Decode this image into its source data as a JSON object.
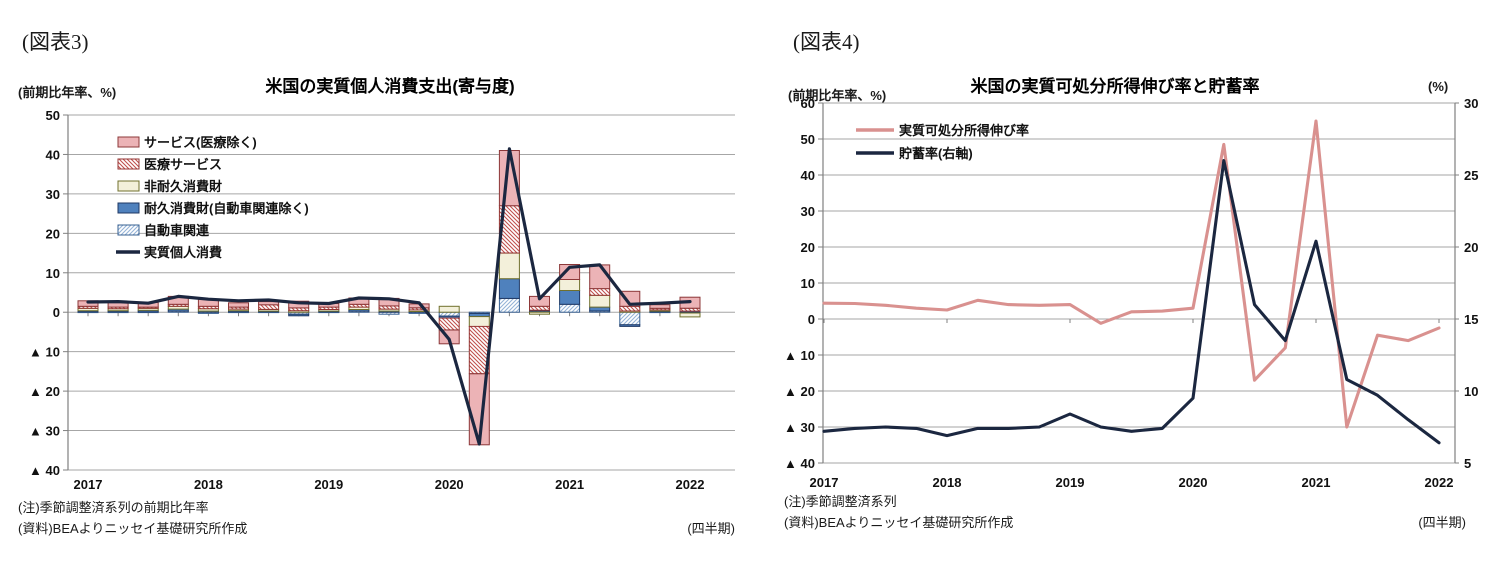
{
  "page": {
    "background": "#ffffff"
  },
  "figure3": {
    "tag": "(図表3)",
    "axis_unit": "(前期比年率、%)",
    "title": "米国の実質個人消費支出(寄与度)",
    "note1": "(注)季節調整済系列の前期比年率",
    "note2": "(資料)BEAよりニッセイ基礎研究所作成",
    "period_label": "(四半期)"
  },
  "figure4": {
    "tag": "(図表4)",
    "axis_unit": "(前期比年率、%)",
    "right_axis_unit": "(%)",
    "title": "米国の実質可処分所得伸び率と貯蓄率",
    "note1": "(注)季節調整済系列",
    "note2": "(資料)BEAよりニッセイ基礎研究所作成",
    "period_label": "(四半期)"
  },
  "chart_data": [
    {
      "figure": "図表3",
      "type": "bar",
      "subtype": "stacked-bar-with-line",
      "title": "米国の実質個人消費支出(寄与度)",
      "xlabel": "(四半期)",
      "ylabel": "(前期比年率、%)",
      "ylim": [
        -40,
        50
      ],
      "ytick_interval": 10,
      "negative_label_format": "▲ {n}",
      "grid": true,
      "legend_position": "upper-left",
      "x_quarters": [
        "2017Q1",
        "2017Q2",
        "2017Q3",
        "2017Q4",
        "2018Q1",
        "2018Q2",
        "2018Q3",
        "2018Q4",
        "2019Q1",
        "2019Q2",
        "2019Q3",
        "2019Q4",
        "2020Q1",
        "2020Q2",
        "2020Q3",
        "2020Q4",
        "2021Q1",
        "2021Q2",
        "2021Q3",
        "2021Q4",
        "2022Q1"
      ],
      "year_labels": [
        "2017",
        "2018",
        "2019",
        "2020",
        "2021",
        "2022"
      ],
      "bar_series": [
        {
          "name": "自動車関連",
          "style": "hatch-blue",
          "values": [
            0.1,
            0.1,
            0.1,
            0.3,
            -0.3,
            0.1,
            0.1,
            -0.5,
            0.1,
            0.3,
            -0.5,
            -0.3,
            -1.0,
            -0.3,
            3.5,
            0.3,
            2.0,
            0.3,
            -3.2,
            0.1,
            -0.2
          ]
        },
        {
          "name": "耐久消費財(自動車関連除く)",
          "style": "solid-blue",
          "values": [
            0.3,
            0.3,
            0.4,
            0.5,
            0.3,
            0.3,
            0.2,
            -0.4,
            0.2,
            0.4,
            0.3,
            0.2,
            -0.5,
            -0.8,
            5.0,
            0.2,
            3.5,
            1.0,
            -0.4,
            0.2,
            0.3
          ]
        },
        {
          "name": "非耐久消費財",
          "style": "solid-cream",
          "values": [
            0.6,
            0.5,
            0.5,
            0.7,
            0.6,
            0.4,
            0.4,
            0.4,
            0.4,
            0.6,
            0.5,
            0.4,
            1.5,
            -2.5,
            6.5,
            -0.5,
            2.8,
            3.0,
            0.3,
            0.3,
            -1.0
          ]
        },
        {
          "name": "医療サービス",
          "style": "hatch-pink",
          "values": [
            0.5,
            0.4,
            0.3,
            0.5,
            0.6,
            0.5,
            1.2,
            0.7,
            0.6,
            0.7,
            0.8,
            0.5,
            -3.0,
            -12.0,
            12.0,
            1.0,
            0.0,
            1.7,
            1.2,
            0.4,
            0.7
          ]
        },
        {
          "name": "サービス(医療除く)",
          "style": "solid-pink",
          "values": [
            1.4,
            1.4,
            1.2,
            2.0,
            1.8,
            1.1,
            0.8,
            1.7,
            0.9,
            1.6,
            1.9,
            1.0,
            -3.5,
            -18.0,
            14.0,
            2.5,
            3.8,
            6.0,
            3.8,
            0.9,
            2.8
          ]
        }
      ],
      "line_series": {
        "name": "実質個人消費",
        "style": "navy-line",
        "values": [
          2.6,
          2.7,
          2.3,
          4.0,
          3.3,
          2.9,
          3.1,
          2.4,
          2.2,
          3.6,
          3.4,
          2.4,
          -6.9,
          -33.4,
          41.4,
          3.4,
          11.4,
          12.0,
          2.0,
          2.3,
          2.7
        ]
      },
      "legend_order": [
        "サービス(医療除く)",
        "医療サービス",
        "非耐久消費財",
        "耐久消費財(自動車関連除く)",
        "自動車関連",
        "実質個人消費"
      ],
      "colors": {
        "solid-pink": "#ecb3b6",
        "solid-pink-border": "#8c3839",
        "hatch-pink-line": "#c0504d",
        "hatch-pink-border": "#943634",
        "solid-cream": "#f3f0da",
        "solid-cream-border": "#70702d",
        "solid-blue": "#4f81bd",
        "solid-blue-border": "#1f3864",
        "hatch-blue-line": "#95b3d7",
        "hatch-blue-border": "#376092",
        "navy-line": "#1b2740"
      }
    },
    {
      "figure": "図表4",
      "type": "line",
      "title": "米国の実質可処分所得伸び率と貯蓄率",
      "xlabel": "(四半期)",
      "ylabel_left": "(前期比年率、%)",
      "ylabel_right": "(%)",
      "ylim_left": [
        -40,
        60
      ],
      "ylim_right": [
        5,
        30
      ],
      "left_tick_interval": 10,
      "right_tick_values": [
        30,
        25,
        20,
        15,
        10,
        5
      ],
      "negative_label_format": "▲ {n}",
      "grid": true,
      "legend_position": "upper-left",
      "x_quarters": [
        "2017Q1",
        "2017Q2",
        "2017Q3",
        "2017Q4",
        "2018Q1",
        "2018Q2",
        "2018Q3",
        "2018Q4",
        "2019Q1",
        "2019Q2",
        "2019Q3",
        "2019Q4",
        "2020Q1",
        "2020Q2",
        "2020Q3",
        "2020Q4",
        "2021Q1",
        "2021Q2",
        "2021Q3",
        "2021Q4",
        "2022Q1"
      ],
      "year_labels": [
        "2017",
        "2018",
        "2019",
        "2020",
        "2021",
        "2022"
      ],
      "series": [
        {
          "name": "実質可処分所得伸び率",
          "axis": "left",
          "color": "#d9918f",
          "values": [
            4.4,
            4.3,
            3.8,
            3.0,
            2.5,
            5.2,
            4.0,
            3.8,
            4.0,
            -1.2,
            2.0,
            2.2,
            3.0,
            48.5,
            -17.0,
            -8.0,
            55.0,
            -30.0,
            -4.5,
            -6.0,
            -2.5
          ]
        },
        {
          "name": "貯蓄率(右軸)",
          "axis": "right",
          "color": "#1b2740",
          "values": [
            7.2,
            7.4,
            7.5,
            7.4,
            6.9,
            7.4,
            7.4,
            7.5,
            8.4,
            7.5,
            7.2,
            7.4,
            9.5,
            26.0,
            16.0,
            13.5,
            20.4,
            10.8,
            9.7,
            8.0,
            6.4
          ]
        }
      ]
    }
  ]
}
